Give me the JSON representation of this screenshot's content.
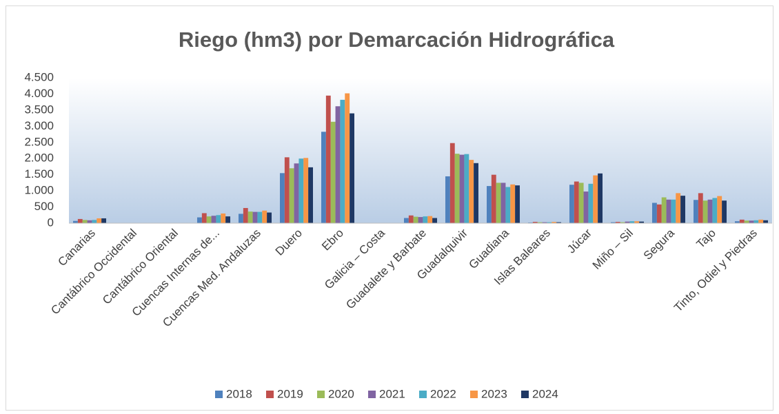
{
  "chart_data": {
    "type": "bar",
    "title": "Riego (hm3) por Demarcación Hidrográfica",
    "categories": [
      "Canarias",
      "Cantábrico Occidental",
      "Cantábrico Oriental",
      "Cuencas Internas de...",
      "Cuencas Med. Andaluzas",
      "Duero",
      "Ebro",
      "Galicia – Costa",
      "Guadalete y Barbate",
      "Guadalquivir",
      "Guadiana",
      "Islas Baleares",
      "Júcar",
      "Miño – Sil",
      "Segura",
      "Tajo",
      "Tinto, Odiel y Piedras"
    ],
    "series": [
      {
        "name": "2018",
        "color": "#4f81bd",
        "values": [
          70,
          0,
          0,
          180,
          290,
          1550,
          2830,
          0,
          160,
          1450,
          1150,
          20,
          1190,
          30,
          630,
          720,
          60
        ]
      },
      {
        "name": "2019",
        "color": "#c0504d",
        "values": [
          130,
          0,
          0,
          310,
          470,
          2040,
          3950,
          0,
          240,
          2480,
          1500,
          40,
          1290,
          40,
          580,
          930,
          110
        ]
      },
      {
        "name": "2020",
        "color": "#9bbb59",
        "values": [
          100,
          0,
          10,
          210,
          360,
          1700,
          3140,
          0,
          200,
          2150,
          1250,
          30,
          1250,
          30,
          800,
          700,
          80
        ]
      },
      {
        "name": "2021",
        "color": "#8064a2",
        "values": [
          90,
          0,
          0,
          230,
          350,
          1850,
          3620,
          0,
          190,
          2120,
          1250,
          30,
          980,
          50,
          730,
          730,
          80
        ]
      },
      {
        "name": "2022",
        "color": "#4bacc6",
        "values": [
          100,
          0,
          0,
          250,
          350,
          2000,
          3820,
          0,
          210,
          2140,
          1120,
          30,
          1220,
          60,
          730,
          780,
          90
        ]
      },
      {
        "name": "2023",
        "color": "#f79646",
        "values": [
          150,
          0,
          0,
          300,
          390,
          2020,
          4020,
          0,
          220,
          1960,
          1200,
          40,
          1480,
          60,
          930,
          840,
          110
        ]
      },
      {
        "name": "2024",
        "color": "#1f3864",
        "values": [
          150,
          0,
          0,
          210,
          330,
          1730,
          3400,
          0,
          160,
          1860,
          1170,
          30,
          1540,
          50,
          850,
          700,
          90
        ]
      }
    ],
    "ylim": [
      0,
      4500
    ],
    "yticks": [
      0,
      500,
      {
        "value": 1000,
        "label": "1.000"
      },
      {
        "value": 1500,
        "label": "1.500"
      },
      {
        "value": 2000,
        "label": "2.000"
      },
      {
        "value": 2500,
        "label": "2.500"
      },
      {
        "value": 3000,
        "label": "3.000"
      },
      {
        "value": 3500,
        "label": "3.500"
      },
      {
        "value": 4000,
        "label": "4.000"
      },
      {
        "value": 4500,
        "label": "4.500"
      }
    ],
    "grid": false,
    "legend": "bottom"
  }
}
